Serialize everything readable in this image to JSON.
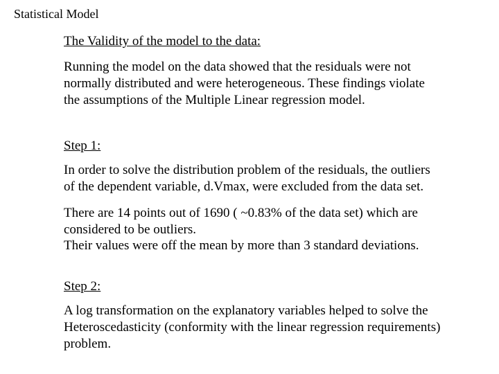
{
  "doc_title": "Statistical Model",
  "validity": {
    "heading": "The Validity of the model to the data:",
    "paragraph": "Running the model on the data showed that the residuals were not normally distributed and were heterogeneous. These findings violate the assumptions of the Multiple Linear regression model."
  },
  "step1": {
    "heading": "Step 1:",
    "paragraph_a": "In order to solve the distribution problem of the residuals, the outliers of the dependent variable, d.Vmax, were excluded from the data set.",
    "paragraph_b": "There are 14 points out of 1690 ( ~0.83% of the data set) which are considered to be outliers.",
    "paragraph_c": "Their values were off the mean by more than 3 standard deviations."
  },
  "step2": {
    "heading": "Step 2:",
    "paragraph": "A log transformation on the explanatory variables helped to solve the Heteroscedasticity (conformity with the linear regression requirements) problem."
  }
}
